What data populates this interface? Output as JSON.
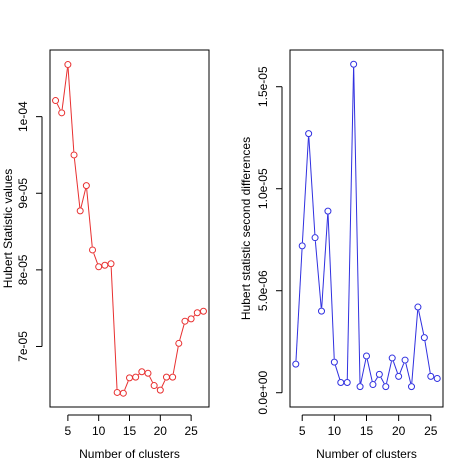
{
  "chart_data": [
    {
      "type": "line",
      "xlabel": "Number of clusters",
      "ylabel": "Hubert Statistic values",
      "color": "#e83030",
      "x": [
        3,
        4,
        5,
        6,
        7,
        8,
        9,
        10,
        11,
        12,
        13,
        14,
        15,
        16,
        17,
        18,
        19,
        20,
        21,
        22,
        23,
        24,
        25,
        26,
        27
      ],
      "values": [
        0.0001021,
        0.0001005,
        0.0001068,
        9.5e-05,
        8.77e-05,
        9.1e-05,
        8.26e-05,
        8.04e-05,
        8.06e-05,
        8.08e-05,
        6.4e-05,
        6.39e-05,
        6.59e-05,
        6.6e-05,
        6.67e-05,
        6.65e-05,
        6.49e-05,
        6.43e-05,
        6.6e-05,
        6.6e-05,
        7.04e-05,
        7.33e-05,
        7.36e-05,
        7.44e-05,
        7.46e-05
      ],
      "xlim": [
        2.1,
        27.9
      ],
      "ylim": [
        6.21e-05,
        0.0001087
      ],
      "xticks": [
        5,
        10,
        15,
        20,
        25
      ],
      "xtick_labels": [
        "5",
        "10",
        "15",
        "20",
        "25"
      ],
      "yticks": [
        7e-05,
        8e-05,
        9e-05,
        0.0001
      ],
      "ytick_labels": [
        "7e-05",
        "8e-05",
        "9e-05",
        "1e-04"
      ],
      "grid": false
    },
    {
      "type": "line",
      "xlabel": "Number of clusters",
      "ylabel": "Hubert statistic second differences",
      "color": "#3030e0",
      "x": [
        4,
        5,
        6,
        7,
        8,
        9,
        10,
        11,
        12,
        13,
        14,
        15,
        16,
        17,
        18,
        19,
        20,
        21,
        22,
        23,
        24,
        25,
        26
      ],
      "values": [
        1.4e-06,
        7.2e-06,
        1.27e-05,
        7.6e-06,
        4e-06,
        8.9e-06,
        1.5e-06,
        5e-07,
        5e-07,
        1.61e-05,
        3e-07,
        1.8e-06,
        4e-07,
        9e-07,
        3e-07,
        1.7e-06,
        8e-07,
        1.6e-06,
        3e-07,
        4.2e-06,
        2.7e-06,
        8e-07,
        7e-07
      ],
      "xlim": [
        3.1,
        26.9
      ],
      "ylim": [
        -7e-07,
        1.68e-05
      ],
      "xticks": [
        5,
        10,
        15,
        20,
        25
      ],
      "xtick_labels": [
        "5",
        "10",
        "15",
        "20",
        "25"
      ],
      "yticks": [
        0,
        5e-06,
        1e-05,
        1.5e-05
      ],
      "ytick_labels": [
        "0.0e+00",
        "5.0e-06",
        "1.0e-05",
        "1.5e-05"
      ],
      "grid": false
    }
  ]
}
